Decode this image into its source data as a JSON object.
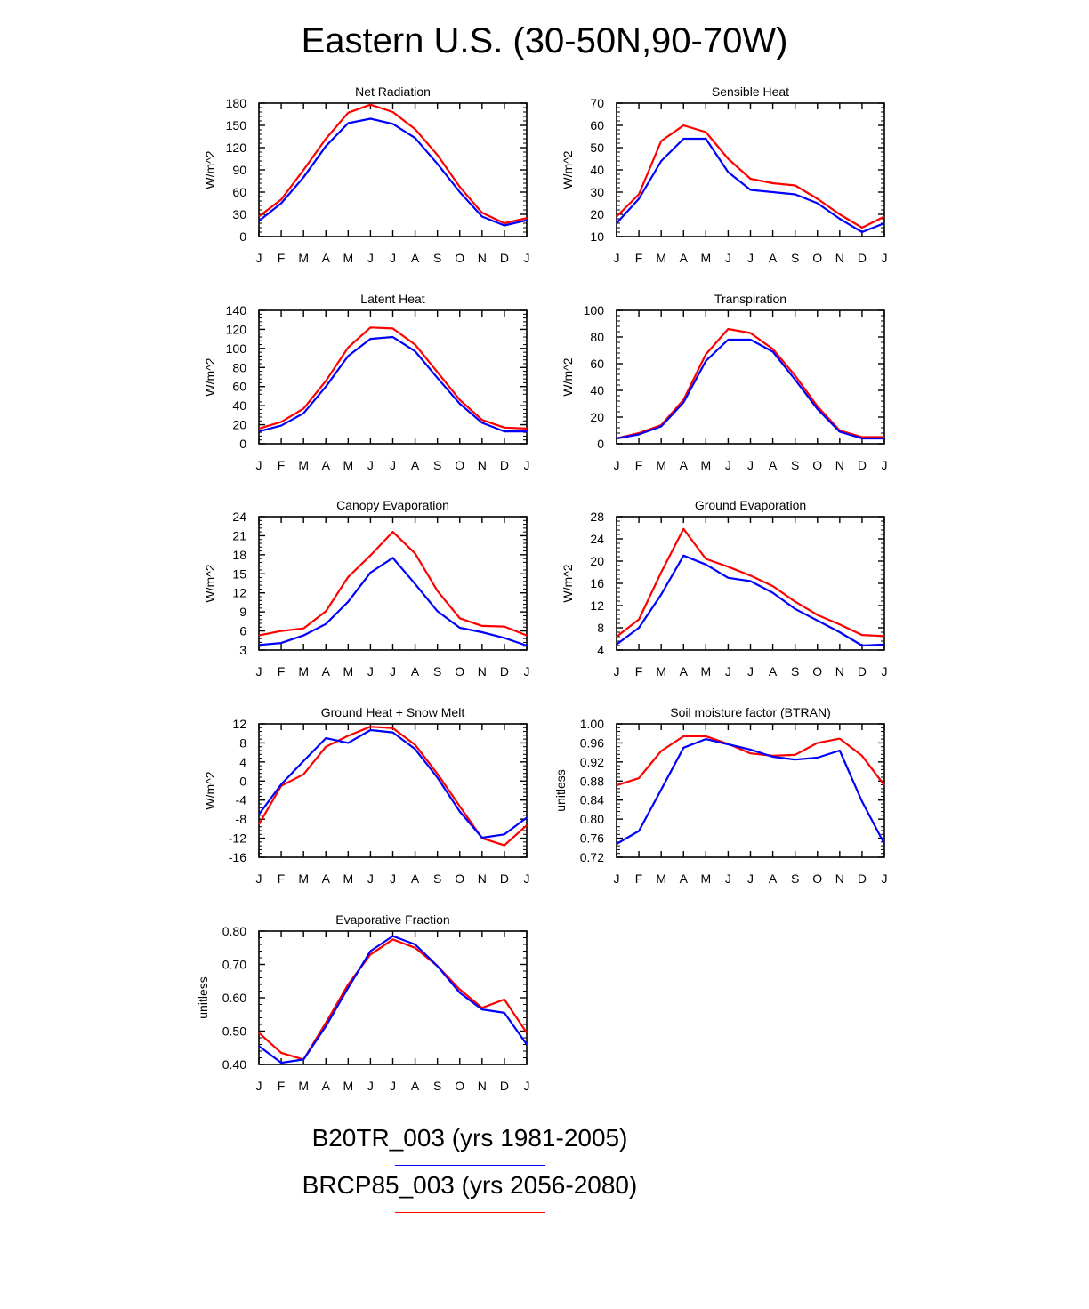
{
  "title": "Eastern U.S. (30-50N,90-70W)",
  "colors": {
    "series1": "#0000ff",
    "series2": "#ff0000",
    "axis": "#000000"
  },
  "legend": [
    {
      "label": "B20TR_003 (yrs 1981-2005)",
      "color": "#0000ff"
    },
    {
      "label": "BRCP85_003 (yrs 2056-2080)",
      "color": "#ff0000"
    }
  ],
  "chart_data": [
    {
      "type": "line",
      "title": "Net Radiation",
      "xlabel": "",
      "ylabel": "W/m^2",
      "categories": [
        "J",
        "F",
        "M",
        "A",
        "M",
        "J",
        "J",
        "A",
        "S",
        "O",
        "N",
        "D",
        "J"
      ],
      "ylim": [
        0,
        180
      ],
      "yticks": [
        "0",
        "30",
        "60",
        "90",
        "120",
        "150",
        "180"
      ],
      "series": [
        {
          "name": "B20TR_003 (yrs 1981-2005)",
          "values": [
            21,
            45,
            80,
            122,
            153,
            159,
            152,
            133,
            98,
            60,
            27,
            15,
            22
          ]
        },
        {
          "name": "BRCP85_003 (yrs 2056-2080)",
          "values": [
            27,
            50,
            90,
            132,
            167,
            178,
            168,
            145,
            110,
            67,
            32,
            18,
            25
          ]
        }
      ]
    },
    {
      "type": "line",
      "title": "Sensible Heat",
      "xlabel": "",
      "ylabel": "W/m^2",
      "categories": [
        "J",
        "F",
        "M",
        "A",
        "M",
        "J",
        "J",
        "A",
        "S",
        "O",
        "N",
        "D",
        "J"
      ],
      "ylim": [
        10,
        70
      ],
      "yticks": [
        "10",
        "20",
        "30",
        "40",
        "50",
        "60",
        "70"
      ],
      "series": [
        {
          "name": "B20TR_003 (yrs 1981-2005)",
          "values": [
            16,
            27,
            44,
            54,
            54,
            39,
            31,
            30,
            29,
            25,
            18,
            12,
            16
          ]
        },
        {
          "name": "BRCP85_003 (yrs 2056-2080)",
          "values": [
            19,
            29,
            53,
            60,
            57,
            45,
            36,
            34,
            33,
            27,
            20,
            14,
            19
          ]
        }
      ]
    },
    {
      "type": "line",
      "title": "Latent Heat",
      "xlabel": "",
      "ylabel": "W/m^2",
      "categories": [
        "J",
        "F",
        "M",
        "A",
        "M",
        "J",
        "J",
        "A",
        "S",
        "O",
        "N",
        "D",
        "J"
      ],
      "ylim": [
        0,
        140
      ],
      "yticks": [
        "0",
        "20",
        "40",
        "60",
        "80",
        "100",
        "120",
        "140"
      ],
      "series": [
        {
          "name": "B20TR_003 (yrs 1981-2005)",
          "values": [
            13,
            19,
            32,
            60,
            92,
            110,
            112,
            97,
            69,
            42,
            22,
            13,
            13
          ]
        },
        {
          "name": "BRCP85_003 (yrs 2056-2080)",
          "values": [
            16,
            23,
            37,
            66,
            101,
            122,
            121,
            104,
            75,
            46,
            25,
            17,
            16
          ]
        }
      ]
    },
    {
      "type": "line",
      "title": "Transpiration",
      "xlabel": "",
      "ylabel": "W/m^2",
      "categories": [
        "J",
        "F",
        "M",
        "A",
        "M",
        "J",
        "J",
        "A",
        "S",
        "O",
        "N",
        "D",
        "J"
      ],
      "ylim": [
        0,
        100
      ],
      "yticks": [
        "0",
        "20",
        "40",
        "60",
        "80",
        "100"
      ],
      "series": [
        {
          "name": "B20TR_003 (yrs 1981-2005)",
          "values": [
            4,
            7,
            13,
            31,
            62,
            78,
            78,
            69,
            48,
            26,
            9,
            4,
            4
          ]
        },
        {
          "name": "BRCP85_003 (yrs 2056-2080)",
          "values": [
            4,
            8,
            14,
            33,
            67,
            86,
            83,
            71,
            51,
            28,
            10,
            5,
            5
          ]
        }
      ]
    },
    {
      "type": "line",
      "title": "Canopy Evaporation",
      "xlabel": "",
      "ylabel": "W/m^2",
      "categories": [
        "J",
        "F",
        "M",
        "A",
        "M",
        "J",
        "J",
        "A",
        "S",
        "O",
        "N",
        "D",
        "J"
      ],
      "ylim": [
        3,
        24
      ],
      "yticks": [
        "3",
        "6",
        "9",
        "12",
        "15",
        "18",
        "21",
        "24"
      ],
      "series": [
        {
          "name": "B20TR_003 (yrs 1981-2005)",
          "values": [
            3.8,
            4.1,
            5.3,
            7.1,
            10.6,
            15.2,
            17.5,
            13.4,
            9.1,
            6.5,
            5.8,
            4.9,
            3.7
          ]
        },
        {
          "name": "BRCP85_003 (yrs 2056-2080)",
          "values": [
            5.3,
            6.0,
            6.4,
            9.1,
            14.5,
            17.9,
            21.6,
            18.2,
            12.3,
            8.0,
            6.8,
            6.7,
            5.3
          ]
        }
      ]
    },
    {
      "type": "line",
      "title": "Ground Evaporation",
      "xlabel": "",
      "ylabel": "W/m^2",
      "categories": [
        "J",
        "F",
        "M",
        "A",
        "M",
        "J",
        "J",
        "A",
        "S",
        "O",
        "N",
        "D",
        "J"
      ],
      "ylim": [
        4,
        28
      ],
      "yticks": [
        "4",
        "8",
        "12",
        "16",
        "20",
        "24",
        "28"
      ],
      "series": [
        {
          "name": "B20TR_003 (yrs 1981-2005)",
          "values": [
            5.0,
            8.0,
            14.0,
            21.0,
            19.4,
            17.0,
            16.4,
            14.3,
            11.4,
            9.3,
            7.2,
            4.8,
            5.0
          ]
        },
        {
          "name": "BRCP85_003 (yrs 2056-2080)",
          "values": [
            6.4,
            9.5,
            18.0,
            25.8,
            20.4,
            19.0,
            17.4,
            15.5,
            12.7,
            10.3,
            8.6,
            6.7,
            6.5
          ]
        }
      ]
    },
    {
      "type": "line",
      "title": "Ground Heat + Snow Melt",
      "xlabel": "",
      "ylabel": "W/m^2",
      "categories": [
        "J",
        "F",
        "M",
        "A",
        "M",
        "J",
        "J",
        "A",
        "S",
        "O",
        "N",
        "D",
        "J"
      ],
      "ylim": [
        -16,
        12
      ],
      "yticks": [
        "-16",
        "-12",
        "-8",
        "-4",
        "0",
        "4",
        "8",
        "12"
      ],
      "series": [
        {
          "name": "B20TR_003 (yrs 1981-2005)",
          "values": [
            -7.0,
            -0.7,
            4.2,
            9.0,
            8.0,
            10.7,
            10.2,
            6.7,
            0.7,
            -6.4,
            -11.9,
            -11.2,
            -7.7
          ]
        },
        {
          "name": "BRCP85_003 (yrs 2056-2080)",
          "values": [
            -9.1,
            -1.0,
            1.4,
            7.2,
            9.5,
            11.4,
            11.1,
            7.6,
            1.5,
            -5.3,
            -12.0,
            -13.5,
            -9.3
          ]
        }
      ]
    },
    {
      "type": "line",
      "title": "Soil moisture factor (BTRAN)",
      "xlabel": "",
      "ylabel": "unitless",
      "categories": [
        "J",
        "F",
        "M",
        "A",
        "M",
        "J",
        "J",
        "A",
        "S",
        "O",
        "N",
        "D",
        "J"
      ],
      "ylim": [
        0.72,
        1.0
      ],
      "yticks": [
        "0.72",
        "0.76",
        "0.80",
        "0.84",
        "0.88",
        "0.92",
        "0.96",
        "1.00"
      ],
      "series": [
        {
          "name": "B20TR_003 (yrs 1981-2005)",
          "values": [
            0.748,
            0.775,
            0.862,
            0.95,
            0.968,
            0.957,
            0.946,
            0.931,
            0.925,
            0.929,
            0.944,
            0.837,
            0.748
          ]
        },
        {
          "name": "BRCP85_003 (yrs 2056-2080)",
          "values": [
            0.871,
            0.886,
            0.943,
            0.974,
            0.974,
            0.958,
            0.938,
            0.933,
            0.935,
            0.96,
            0.969,
            0.933,
            0.871
          ]
        }
      ]
    },
    {
      "type": "line",
      "title": "Evaporative Fraction",
      "xlabel": "",
      "ylabel": "unitless",
      "categories": [
        "J",
        "F",
        "M",
        "A",
        "M",
        "J",
        "J",
        "A",
        "S",
        "O",
        "N",
        "D",
        "J"
      ],
      "ylim": [
        0.4,
        0.8
      ],
      "yticks": [
        "0.40",
        "0.50",
        "0.60",
        "0.70",
        "0.80"
      ],
      "series": [
        {
          "name": "B20TR_003 (yrs 1981-2005)",
          "values": [
            0.455,
            0.405,
            0.415,
            0.515,
            0.63,
            0.74,
            0.785,
            0.76,
            0.695,
            0.615,
            0.565,
            0.555,
            0.46
          ]
        },
        {
          "name": "BRCP85_003 (yrs 2056-2080)",
          "values": [
            0.495,
            0.435,
            0.415,
            0.525,
            0.64,
            0.73,
            0.775,
            0.75,
            0.695,
            0.625,
            0.57,
            0.595,
            0.495
          ]
        }
      ]
    }
  ]
}
